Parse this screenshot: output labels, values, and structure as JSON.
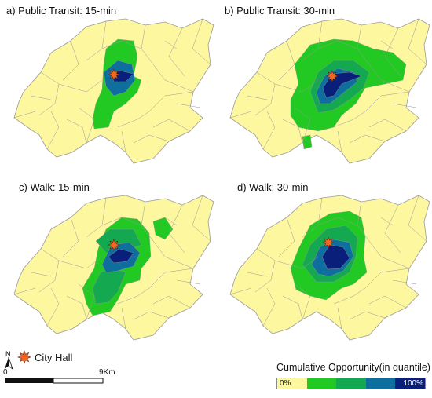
{
  "panels": [
    {
      "id": "a",
      "title": "a) Public Transit: 15-min"
    },
    {
      "id": "b",
      "title": "b) Public Transit: 30-min"
    },
    {
      "id": "c",
      "title": "c) Walk: 15-min"
    },
    {
      "id": "d",
      "title": "d) Walk: 30-min"
    }
  ],
  "legend": {
    "city_hall_label": "City Hall",
    "opportunity_title": "Cumulative Opportunity(in quantile)",
    "low_label": "0%",
    "high_label": "100%",
    "classes": [
      "#FDF7A0",
      "#22C922",
      "#14A850",
      "#0E6E9E",
      "#0A1F7A"
    ]
  },
  "scale_bar": {
    "start_label": "0",
    "end_label": "9Km"
  },
  "colors": {
    "base_fill": "#FDF7A0",
    "boundary": "#9a9a9a",
    "city_hall": "#F26522"
  }
}
